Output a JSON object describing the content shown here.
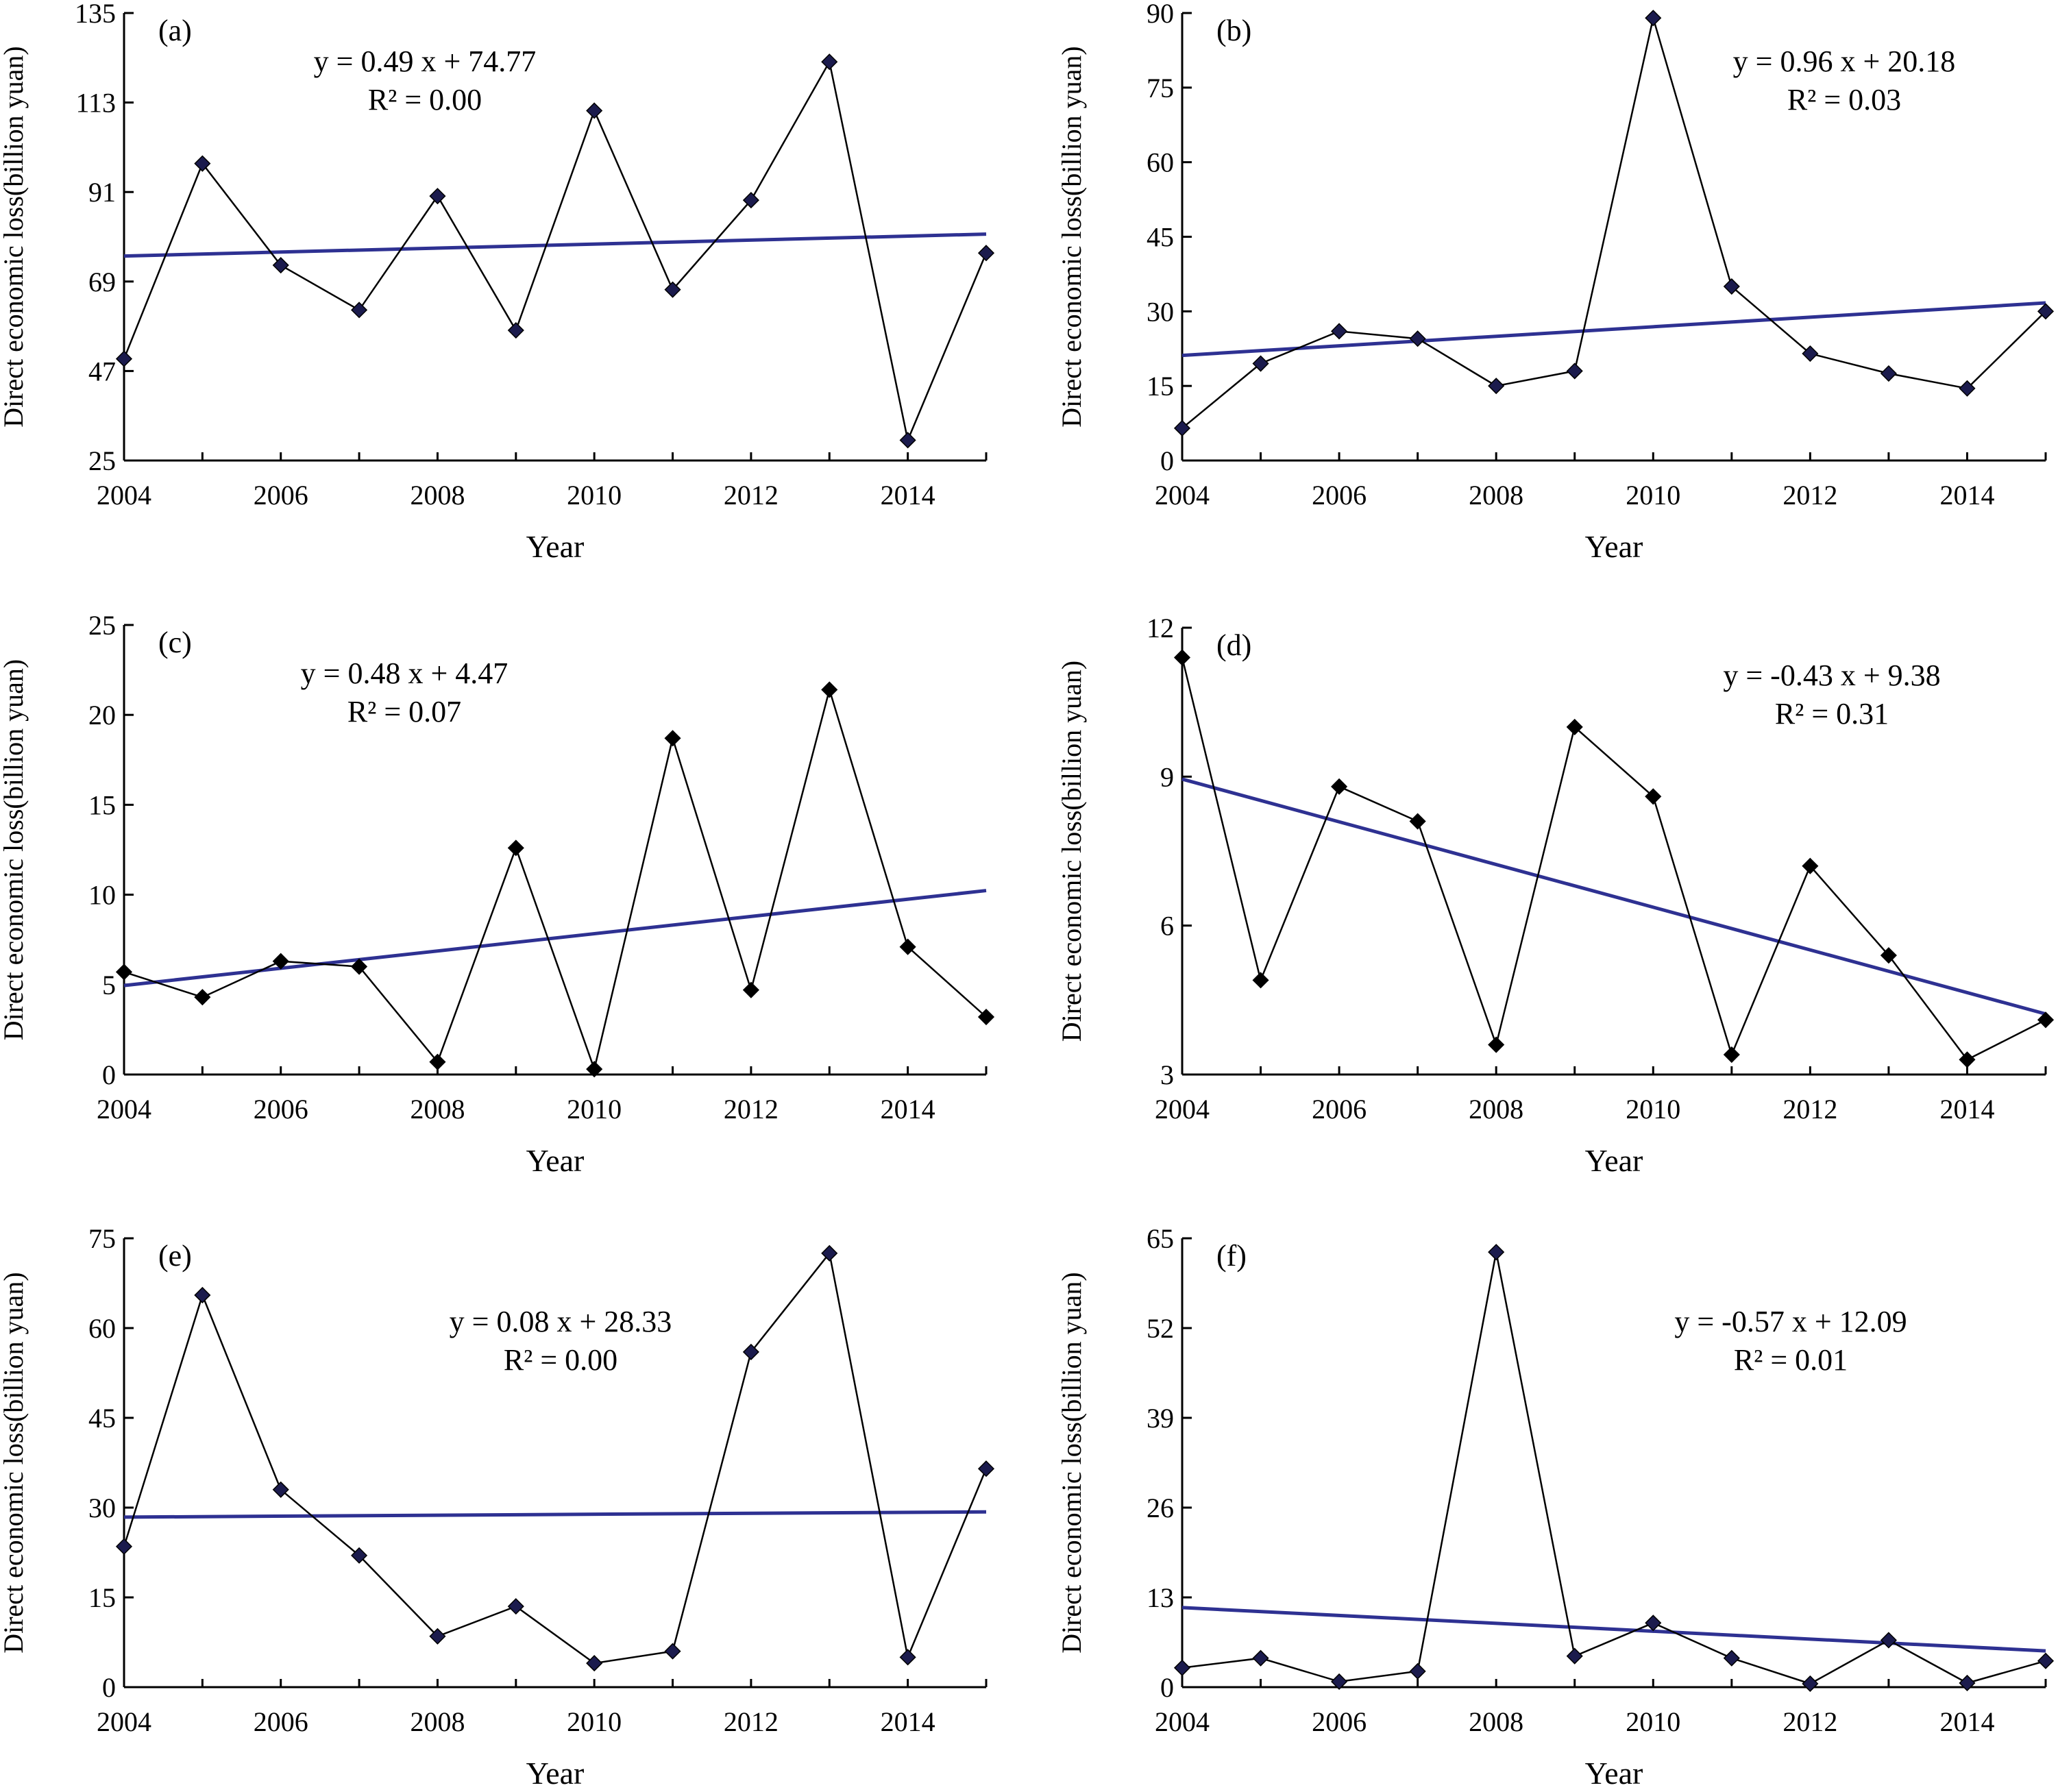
{
  "chart_data": [
    {
      "type": "line",
      "panel_label": "(a)",
      "xlabel": "Year",
      "ylabel": "Direct economic loss(billion yuan)",
      "x": [
        2004,
        2005,
        2006,
        2007,
        2008,
        2009,
        2010,
        2011,
        2012,
        2013,
        2014,
        2015
      ],
      "x_ticks": [
        2004,
        2006,
        2008,
        2010,
        2012,
        2014
      ],
      "xlim": [
        2004,
        2015
      ],
      "ylim": [
        25,
        135
      ],
      "y_ticks": [
        25,
        47,
        69,
        91,
        113,
        135
      ],
      "series": [
        {
          "values": [
            50,
            98,
            73,
            62,
            90,
            57,
            111,
            67,
            89,
            123,
            30,
            76
          ],
          "color": "#000000",
          "marker": "diamond",
          "marker_color": "#1b1b4d"
        },
        {
          "trendline": true,
          "slope": 0.49,
          "intercept": 74.77,
          "color": "#2e3192"
        }
      ],
      "equation": "y = 0.49 x + 74.77",
      "r2": "R² = 0.00"
    },
    {
      "type": "line",
      "panel_label": "(b)",
      "xlabel": "Year",
      "ylabel": "Direct economic loss(billion yuan)",
      "x": [
        2004,
        2005,
        2006,
        2007,
        2008,
        2009,
        2010,
        2011,
        2012,
        2013,
        2014,
        2015
      ],
      "x_ticks": [
        2004,
        2006,
        2008,
        2010,
        2012,
        2014
      ],
      "xlim": [
        2004,
        2015
      ],
      "ylim": [
        0,
        90
      ],
      "y_ticks": [
        0,
        15,
        30,
        45,
        60,
        75,
        90
      ],
      "series": [
        {
          "values": [
            6.5,
            19.5,
            26,
            24.5,
            15,
            18,
            89,
            35,
            21.5,
            17.5,
            14.5,
            30
          ],
          "color": "#000000",
          "marker": "diamond",
          "marker_color": "#1b1b4d"
        },
        {
          "trendline": true,
          "slope": 0.96,
          "intercept": 20.18,
          "color": "#2e3192"
        }
      ],
      "equation": "y = 0.96 x + 20.18",
      "r2": "R² = 0.03"
    },
    {
      "type": "line",
      "panel_label": "(c)",
      "xlabel": "Year",
      "ylabel": "Direct economic loss(billion yuan)",
      "x": [
        2004,
        2005,
        2006,
        2007,
        2008,
        2009,
        2010,
        2011,
        2012,
        2013,
        2014,
        2015
      ],
      "x_ticks": [
        2004,
        2006,
        2008,
        2010,
        2012,
        2014
      ],
      "xlim": [
        2004,
        2015
      ],
      "ylim": [
        0,
        25
      ],
      "y_ticks": [
        0,
        5,
        10,
        15,
        20,
        25
      ],
      "series": [
        {
          "values": [
            5.7,
            4.3,
            6.3,
            6.0,
            0.7,
            12.6,
            0.3,
            18.7,
            4.7,
            21.4,
            7.1,
            3.2
          ],
          "color": "#000000",
          "marker": "diamond",
          "marker_color": "#000000"
        },
        {
          "trendline": true,
          "slope": 0.48,
          "intercept": 4.47,
          "color": "#2e3192"
        }
      ],
      "equation": "y = 0.48 x + 4.47",
      "r2": "R² = 0.07"
    },
    {
      "type": "line",
      "panel_label": "(d)",
      "xlabel": "Year",
      "ylabel": "Direct economic loss(billion yuan)",
      "x": [
        2004,
        2005,
        2006,
        2007,
        2008,
        2009,
        2010,
        2011,
        2012,
        2013,
        2014,
        2015
      ],
      "x_ticks": [
        2004,
        2006,
        2008,
        2010,
        2012,
        2014
      ],
      "xlim": [
        2004,
        2015
      ],
      "ylim": [
        3,
        12
      ],
      "y_ticks": [
        3,
        6,
        9,
        12
      ],
      "series": [
        {
          "values": [
            11.4,
            4.9,
            8.8,
            8.1,
            3.6,
            10.0,
            8.6,
            3.4,
            7.2,
            5.4,
            3.3,
            4.1
          ],
          "color": "#000000",
          "marker": "diamond",
          "marker_color": "#000000"
        },
        {
          "trendline": true,
          "slope": -0.43,
          "intercept": 9.38,
          "color": "#2e3192"
        }
      ],
      "equation": "y = -0.43 x + 9.38",
      "r2": "R² = 0.31"
    },
    {
      "type": "line",
      "panel_label": "(e)",
      "xlabel": "Year",
      "ylabel": "Direct economic loss(billion yuan)",
      "x": [
        2004,
        2005,
        2006,
        2007,
        2008,
        2009,
        2010,
        2011,
        2012,
        2013,
        2014,
        2015
      ],
      "x_ticks": [
        2004,
        2006,
        2008,
        2010,
        2012,
        2014
      ],
      "xlim": [
        2004,
        2015
      ],
      "ylim": [
        0,
        75
      ],
      "y_ticks": [
        0,
        15,
        30,
        45,
        60,
        75
      ],
      "series": [
        {
          "values": [
            23.5,
            65.5,
            33,
            22,
            8.5,
            13.5,
            4,
            6,
            56,
            72.5,
            5,
            36.5
          ],
          "color": "#000000",
          "marker": "diamond",
          "marker_color": "#1b1b4d"
        },
        {
          "trendline": true,
          "slope": 0.08,
          "intercept": 28.33,
          "color": "#2e3192"
        }
      ],
      "equation": "y = 0.08 x + 28.33",
      "r2": "R² = 0.00"
    },
    {
      "type": "line",
      "panel_label": "(f)",
      "xlabel": "Year",
      "ylabel": "Direct economic loss(billion yuan)",
      "x": [
        2004,
        2005,
        2006,
        2007,
        2008,
        2009,
        2010,
        2011,
        2012,
        2013,
        2014,
        2015
      ],
      "x_ticks": [
        2004,
        2006,
        2008,
        2010,
        2012,
        2014
      ],
      "xlim": [
        2004,
        2015
      ],
      "ylim": [
        0,
        65
      ],
      "y_ticks": [
        0,
        13,
        26,
        39,
        52,
        65
      ],
      "series": [
        {
          "values": [
            2.8,
            4.2,
            0.8,
            2.3,
            63,
            4.5,
            9.3,
            4.2,
            0.5,
            6.8,
            0.6,
            3.8
          ],
          "color": "#000000",
          "marker": "diamond",
          "marker_color": "#1b1b4d"
        },
        {
          "trendline": true,
          "slope": -0.57,
          "intercept": 12.09,
          "color": "#2e3192"
        }
      ],
      "equation": "y = -0.57 x + 12.09",
      "r2": "R² = 0.01"
    }
  ]
}
